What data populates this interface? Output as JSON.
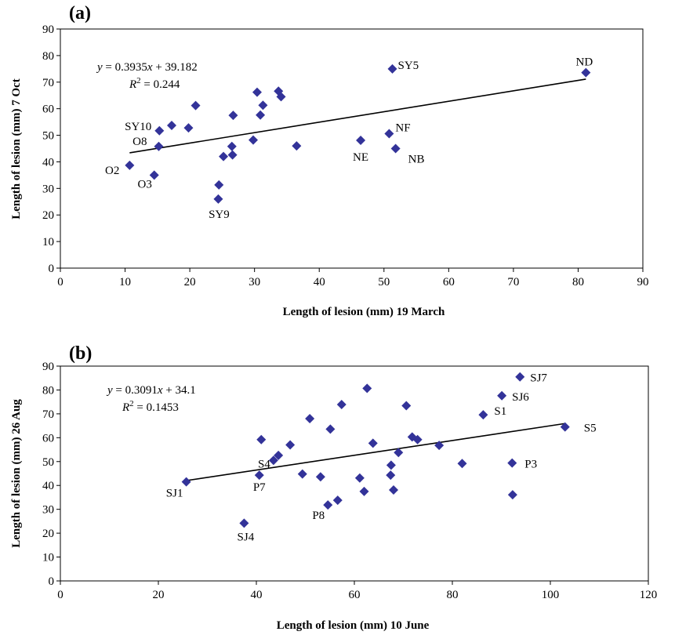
{
  "chart_data": [
    {
      "panel": "(a)",
      "type": "scatter",
      "xlabel": "Length of lesion (mm) 19 March",
      "ylabel": "Length of lesion (mm) 7 Oct",
      "xlim": [
        0,
        90
      ],
      "ylim": [
        0,
        90
      ],
      "xticks": [
        0,
        10,
        20,
        30,
        40,
        50,
        60,
        70,
        80,
        90
      ],
      "yticks": [
        0,
        10,
        20,
        30,
        40,
        50,
        60,
        70,
        80,
        90
      ],
      "grid": false,
      "marker_color": "#333399",
      "equation_line1": "= 0.3935",
      "equation_line1_tail": "+ 39.182",
      "equation_line2": " = 0.244",
      "trendline": {
        "slope": 0.3935,
        "intercept": 39.182,
        "x_range": [
          10.7,
          81.2
        ]
      },
      "points": [
        {
          "x": 10.7,
          "y": 38.7,
          "label": "O2"
        },
        {
          "x": 14.5,
          "y": 35,
          "label": "O3"
        },
        {
          "x": 15.2,
          "y": 45.8,
          "label": "O8"
        },
        {
          "x": 15.3,
          "y": 51.7,
          "label": "SY10"
        },
        {
          "x": 17.2,
          "y": 53.7
        },
        {
          "x": 19.8,
          "y": 52.8
        },
        {
          "x": 20.9,
          "y": 61.2
        },
        {
          "x": 24.4,
          "y": 26,
          "label": "SY9"
        },
        {
          "x": 24.5,
          "y": 31.3
        },
        {
          "x": 25.2,
          "y": 42
        },
        {
          "x": 26.5,
          "y": 45.8
        },
        {
          "x": 26.6,
          "y": 42.6
        },
        {
          "x": 26.7,
          "y": 57.5
        },
        {
          "x": 29.8,
          "y": 48.2
        },
        {
          "x": 30.4,
          "y": 66.2
        },
        {
          "x": 30.9,
          "y": 57.6
        },
        {
          "x": 31.3,
          "y": 61.3
        },
        {
          "x": 33.7,
          "y": 66.6
        },
        {
          "x": 34.1,
          "y": 64.5
        },
        {
          "x": 36.5,
          "y": 46
        },
        {
          "x": 46.4,
          "y": 48.1,
          "label": "NE"
        },
        {
          "x": 50.8,
          "y": 50.6,
          "label": "NF"
        },
        {
          "x": 51.3,
          "y": 75,
          "label": "SY5"
        },
        {
          "x": 51.8,
          "y": 45,
          "label": "NB"
        },
        {
          "x": 81.2,
          "y": 73.6,
          "label": "ND"
        }
      ]
    },
    {
      "panel": "(b)",
      "type": "scatter",
      "xlabel": "Length of lesion (mm) 10 June",
      "ylabel": "Length of lesion (mm) 26 Aug",
      "xlim": [
        0,
        120
      ],
      "ylim": [
        0,
        90
      ],
      "xticks": [
        0,
        20,
        40,
        60,
        80,
        100,
        120
      ],
      "yticks": [
        0,
        10,
        20,
        30,
        40,
        50,
        60,
        70,
        80,
        90
      ],
      "grid": false,
      "marker_color": "#333399",
      "equation_line1": "= 0.3091",
      "equation_line1_tail": "+ 34.1",
      "equation_line2": " = 0.1453",
      "trendline": {
        "slope": 0.3091,
        "intercept": 34.1,
        "x_range": [
          25.7,
          103
        ]
      },
      "points": [
        {
          "x": 25.7,
          "y": 41.5,
          "label": "SJ1"
        },
        {
          "x": 37.5,
          "y": 24.2,
          "label": "SJ4"
        },
        {
          "x": 40.6,
          "y": 44.3,
          "label": "P7"
        },
        {
          "x": 41,
          "y": 59.2
        },
        {
          "x": 43.5,
          "y": 50.5,
          "label": "S4"
        },
        {
          "x": 44.5,
          "y": 52.6
        },
        {
          "x": 46.9,
          "y": 57
        },
        {
          "x": 49.4,
          "y": 44.8
        },
        {
          "x": 50.9,
          "y": 68
        },
        {
          "x": 53.1,
          "y": 43.6
        },
        {
          "x": 54.6,
          "y": 31.8,
          "label": "P8"
        },
        {
          "x": 55.1,
          "y": 63.6
        },
        {
          "x": 56.6,
          "y": 33.8
        },
        {
          "x": 57.4,
          "y": 73.9
        },
        {
          "x": 61.1,
          "y": 43.1
        },
        {
          "x": 62,
          "y": 37.5
        },
        {
          "x": 62.6,
          "y": 80.7
        },
        {
          "x": 63.8,
          "y": 57.7
        },
        {
          "x": 67.4,
          "y": 44.3
        },
        {
          "x": 67.5,
          "y": 48.5
        },
        {
          "x": 68,
          "y": 38.1
        },
        {
          "x": 69,
          "y": 53.8
        },
        {
          "x": 70.6,
          "y": 73.4
        },
        {
          "x": 71.8,
          "y": 60.3
        },
        {
          "x": 72.9,
          "y": 59.2
        },
        {
          "x": 77.3,
          "y": 56.8
        },
        {
          "x": 82,
          "y": 49.2
        },
        {
          "x": 86.3,
          "y": 69.6,
          "label": "S1"
        },
        {
          "x": 90.1,
          "y": 77.6,
          "label": "SJ6"
        },
        {
          "x": 92.2,
          "y": 49.4,
          "label": "P3"
        },
        {
          "x": 92.3,
          "y": 36.1
        },
        {
          "x": 93.8,
          "y": 85.5,
          "label": "SJ7"
        },
        {
          "x": 103,
          "y": 64.5,
          "label": "S5"
        }
      ]
    }
  ]
}
